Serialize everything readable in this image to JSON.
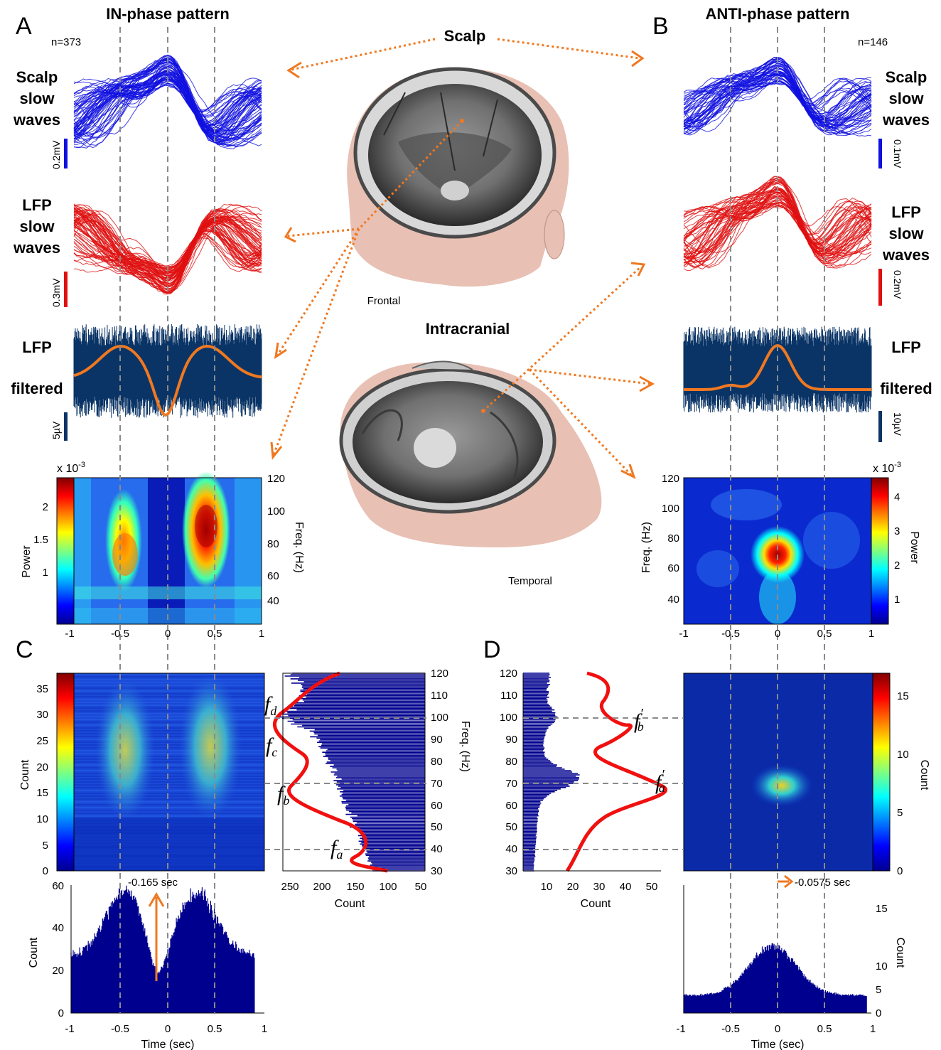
{
  "labels": {
    "panel_a": "A",
    "panel_b": "B",
    "panel_c": "C",
    "panel_d": "D",
    "title_a": "IN-phase pattern",
    "title_b": "ANTI-phase pattern",
    "scalp": "Scalp",
    "intracranial": "Intracranial",
    "frontal": "Frontal",
    "temporal": "Temporal",
    "n_a": "n=373",
    "n_b": "n=146",
    "row_scalp_1": "Scalp",
    "row_scalp_2": "slow",
    "row_scalp_3": "waves",
    "row_lfp_1": "LFP",
    "row_lfp_2": "slow",
    "row_lfp_3": "waves",
    "row_filt_1": "LFP",
    "row_filt_2": "filtered",
    "scale_scalp_a": "0.2mV",
    "scale_lfp_a": "0.3mV",
    "scale_filt_a": "5µV",
    "scale_scalp_b": "0.1mV",
    "scale_lfp_b": "0.2mV",
    "scale_filt_b": "10µV",
    "power_exp": "x 10",
    "power_exp_sup": "-3",
    "power": "Power",
    "freq_hz": "Freq. (Hz)",
    "count": "Count",
    "time_sec": "Time (sec)",
    "peak_c": "-0.165 sec",
    "peak_d": "-0.0575 sec",
    "f_a": "f",
    "f_a_sub": "a",
    "f_b_sub": "b",
    "f_c_sub": "c",
    "f_d_sub": "d"
  },
  "colors": {
    "scalp_blue": "#1010e0",
    "lfp_red": "#e01010",
    "filtered_navy": "#0a3466",
    "envelope_orange": "#f07820",
    "hist_navy": "#00008f",
    "dashed_gray": "#8a8a8a",
    "arrow_orange": "#f07820"
  },
  "chart_data": [
    {
      "type": "heatmap",
      "panel": "A",
      "xlim": [
        -1,
        1
      ],
      "ylim": [
        30,
        120
      ],
      "x_ticks": [
        "-1",
        "-0.5",
        "0",
        "0.5",
        "1"
      ],
      "y_ticks": [
        "40",
        "60",
        "80",
        "100",
        "120"
      ],
      "ylabel": "Freq. (Hz)",
      "colorbar_label": "Power",
      "colorbar_ticks": [
        "1",
        "1.5",
        "2"
      ],
      "colorbar_range": [
        0.6,
        2.25
      ]
    },
    {
      "type": "heatmap",
      "panel": "B",
      "xlim": [
        -1,
        1
      ],
      "ylim": [
        30,
        120
      ],
      "x_ticks": [
        "-1",
        "-0.5",
        "0",
        "0.5",
        "1"
      ],
      "y_ticks": [
        "40",
        "60",
        "80",
        "100",
        "120"
      ],
      "ylabel": "Freq. (Hz)",
      "colorbar_label": "Power",
      "colorbar_ticks": [
        "1",
        "2",
        "3",
        "4"
      ],
      "colorbar_range": [
        0.6,
        4.5
      ]
    },
    {
      "type": "heatmap",
      "panel": "C",
      "xlim": [
        -1,
        1
      ],
      "ylim": [
        0,
        38
      ],
      "y_ticks": [
        "0",
        "5",
        "10",
        "15",
        "20",
        "25",
        "30",
        "35"
      ],
      "ylabel": "Count"
    },
    {
      "type": "bar",
      "panel": "C-time-histogram",
      "xlim": [
        -1,
        1
      ],
      "ylim": [
        0,
        65
      ],
      "x_ticks": [
        "-1",
        "-0.5",
        "0",
        "0.5",
        "1"
      ],
      "y_ticks": [
        "0",
        "20",
        "40",
        "60"
      ],
      "xlabel": "Time (sec)",
      "ylabel": "Count",
      "peak": -0.165
    },
    {
      "type": "bar",
      "panel": "C-frequency-histogram",
      "xlim": [
        280,
        50
      ],
      "ylim": [
        30,
        120
      ],
      "x_ticks": [
        "250",
        "200",
        "150",
        "100",
        "50"
      ],
      "y_ticks": [
        "30",
        "40",
        "50",
        "60",
        "70",
        "80",
        "90",
        "100",
        "110",
        "120"
      ],
      "xlabel": "Count",
      "ylabel": "Freq. (Hz)",
      "marked_frequencies": [
        40,
        70,
        100
      ]
    },
    {
      "type": "bar",
      "panel": "D-frequency-histogram",
      "xlim": [
        2,
        55
      ],
      "ylim": [
        30,
        120
      ],
      "x_ticks": [
        "10",
        "20",
        "30",
        "40",
        "50"
      ],
      "y_ticks": [
        "30",
        "40",
        "50",
        "60",
        "70",
        "80",
        "90",
        "100",
        "110",
        "120"
      ],
      "xlabel": "Count",
      "marked_frequencies": [
        40,
        70,
        100
      ]
    },
    {
      "type": "heatmap",
      "panel": "D",
      "xlim": [
        -1,
        1
      ],
      "ylim": [
        30,
        120
      ],
      "ylabel": "Count",
      "colorbar_label": "Count",
      "colorbar_ticks": [
        "0",
        "5",
        "10",
        "15"
      ],
      "colorbar_range": [
        0,
        17
      ]
    },
    {
      "type": "bar",
      "panel": "D-time-histogram",
      "xlim": [
        -1,
        1
      ],
      "ylim": [
        0,
        16
      ],
      "x_ticks": [
        "-1",
        "-0.5",
        "0",
        "0.5",
        "1"
      ],
      "y_ticks": [
        "0",
        "5",
        "10",
        "15"
      ],
      "xlabel": "Time (sec)",
      "ylabel": "Count",
      "peak": -0.0575
    }
  ]
}
